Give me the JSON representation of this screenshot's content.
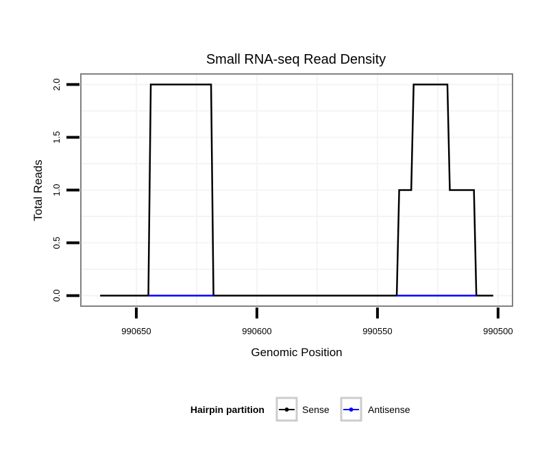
{
  "chart_data": {
    "type": "line",
    "title": "Small RNA-seq Read Density",
    "xlabel": "Genomic Position",
    "ylabel": "Total Reads",
    "xlim": [
      990673,
      990494
    ],
    "x_reversed": true,
    "ylim": [
      -0.1,
      2.1
    ],
    "xticks": [
      990650,
      990600,
      990550,
      990500
    ],
    "xtick_labels": [
      "990650",
      "990600",
      "990550",
      "990500"
    ],
    "yticks": [
      0,
      0.5,
      1,
      1.5,
      2
    ],
    "ytick_labels": [
      "0.0",
      "0.5",
      "1.0",
      "1.5",
      "2.0"
    ],
    "grid": true,
    "legend": {
      "title": "Hairpin partition",
      "placement": "bottom",
      "entries": [
        "Sense",
        "Antisense"
      ]
    },
    "series": [
      {
        "name": "Sense",
        "color": "#000000",
        "x": [
          990665,
          990645,
          990644,
          990619,
          990618,
          990542,
          990541,
          990536,
          990535,
          990521,
          990520,
          990510,
          990509,
          990502
        ],
        "y": [
          0,
          0,
          2,
          2,
          0,
          0,
          1,
          1,
          2,
          2,
          1,
          1,
          0,
          0
        ]
      },
      {
        "name": "Antisense",
        "color": "#0000ff",
        "segments": [
          {
            "x": [
              990645,
              990618
            ],
            "y": [
              0,
              0
            ]
          },
          {
            "x": [
              990542,
              990509
            ],
            "y": [
              0,
              0
            ]
          }
        ]
      }
    ]
  }
}
